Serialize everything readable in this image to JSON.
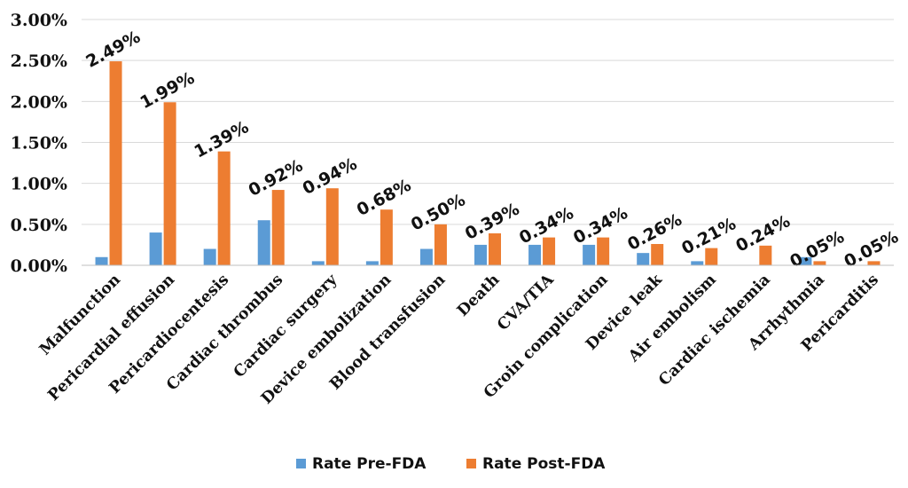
{
  "colors": {
    "pre": "#5B9BD5",
    "post": "#ED7D31",
    "grid": "#d9d9d9"
  },
  "chart_data": {
    "type": "bar",
    "title": "",
    "xlabel": "",
    "ylabel": "",
    "ylim": [
      0,
      3.0
    ],
    "ytick_labels": [
      "0.00%",
      "0.50%",
      "1.00%",
      "1.50%",
      "2.00%",
      "2.50%",
      "3.00%"
    ],
    "grid": true,
    "legend_position": "bottom",
    "categories": [
      "Malfunction",
      "Pericardial effusion",
      "Pericardiocentesis",
      "Cardiac thrombus",
      "Cardiac surgery",
      "Device embolization",
      "Blood transfusion",
      "Death",
      "CVA/TIA",
      "Groin complication",
      "Device leak",
      "Air embolism",
      "Cardiac ischemia",
      "Arrhythmia",
      "Pericarditis"
    ],
    "series": [
      {
        "name": "Rate Pre-FDA",
        "values": [
          0.1,
          0.4,
          0.2,
          0.55,
          0.05,
          0.05,
          0.2,
          0.25,
          0.25,
          0.25,
          0.15,
          0.05,
          0.0,
          0.1,
          0.0
        ]
      },
      {
        "name": "Rate Post-FDA",
        "values": [
          2.49,
          1.99,
          1.39,
          0.92,
          0.94,
          0.68,
          0.5,
          0.39,
          0.34,
          0.34,
          0.26,
          0.21,
          0.24,
          0.05,
          0.05
        ],
        "data_labels": [
          "2.49%",
          "1.99%",
          "1.39%",
          "0.92%",
          "0.94%",
          "0.68%",
          "0.50%",
          "0.39%",
          "0.34%",
          "0.34%",
          "0.26%",
          "0.21%",
          "0.24%",
          "0.05%",
          "0.05%"
        ]
      }
    ]
  }
}
